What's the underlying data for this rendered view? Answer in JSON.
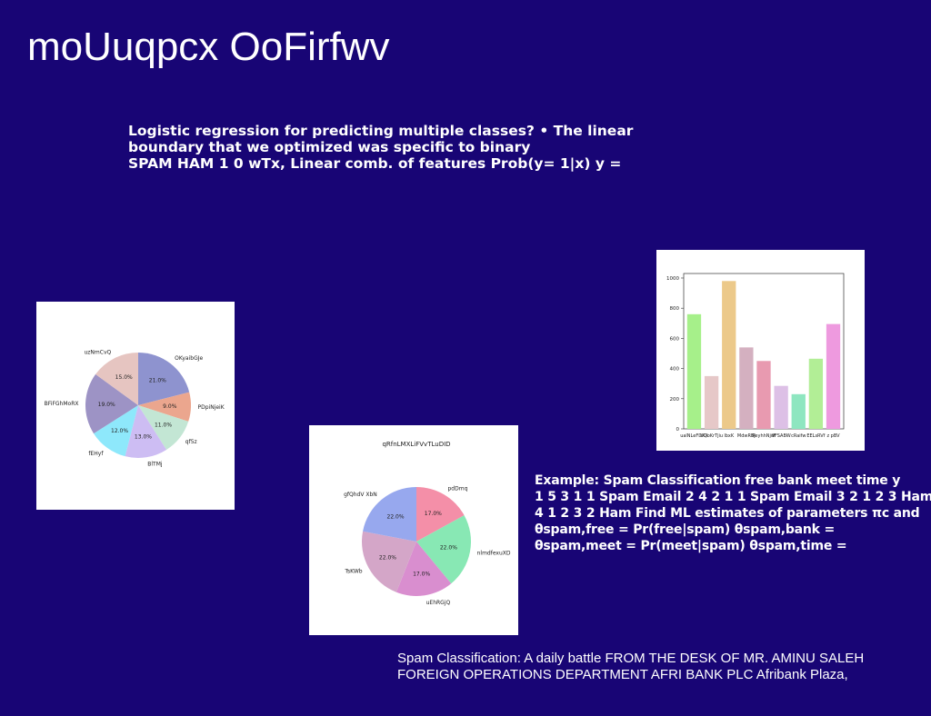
{
  "slide": {
    "title": "moUuqpcx OoFirfwv",
    "text_lines": [
      "Logistic regression for predicting multiple classes? • The linear",
      "boundary that we optimized was specific to binary",
      "SPAM HAM 1 0 wTx, Linear comb. of features Prob(y= 1|x) y ="
    ],
    "example_lines": [
      "Example: Spam Classification free bank meet time y",
      "1 5 3 1 1 Spam Email 2 4 2 1 1 Spam Email 3 2 1 2 3 Ham",
      "4 1 2 3 2 Ham Find ML estimates of parameters πc and",
      "θspam,free = Pr(free|spam) θspam,bank =",
      "θspam,meet = Pr(meet|spam) θspam,time ="
    ],
    "footer_lines": [
      "Spam Classification: A daily battle FROM THE DESK OF MR. AMINU SALEH",
      "FOREIGN OPERATIONS DEPARTMENT AFRI BANK PLC Afribank Plaza,"
    ],
    "background_color": "#180575"
  },
  "chart_data": [
    {
      "type": "pie",
      "title": "",
      "labels": [
        "OKyaibGJe",
        "PDpiNjeiK",
        "qf5z",
        "BlTMj",
        "fEHyf",
        "BFiFGhMoRX",
        "uzNmCvQ"
      ],
      "values": [
        21.0,
        9.0,
        11.0,
        13.0,
        12.0,
        19.0,
        15.0
      ],
      "pct_labels": [
        "21.0%",
        "9.0%",
        "11.0%",
        "13.0%",
        "12.0%",
        "19.0%",
        "15.0%"
      ],
      "colors": [
        "#8e93cf",
        "#eba68e",
        "#c3e6d4",
        "#cdbdf3",
        "#8ee8fb",
        "#9d93c5",
        "#e6c5c1"
      ]
    },
    {
      "type": "pie",
      "title": "qRfnLMXLiFVvTLuDID",
      "labels": [
        "pdDmq",
        "nlmdfexuXD",
        "uEhRGjQ",
        "TsKWb",
        "gfQhdV XbN"
      ],
      "values": [
        17.0,
        22.0,
        17.0,
        22.0,
        22.0
      ],
      "pct_labels": [
        "17.0%",
        "22.0%",
        "17.0%",
        "22.0%",
        "22.0%"
      ],
      "colors": [
        "#f48fa8",
        "#88e8b4",
        "#d98ecf",
        "#d4a6c8",
        "#97a8ee"
      ]
    },
    {
      "type": "bar",
      "title": "",
      "categories": [
        "ualNLeFDKX",
        "UQoKrTjiu",
        "lbxK",
        "MdwRBJ",
        "ReyhhNjdf",
        "VFSABW",
        "cRaifw",
        "EELsRVf",
        "z pBV"
      ],
      "values": [
        760,
        350,
        980,
        540,
        450,
        285,
        230,
        465,
        695
      ],
      "ylim": [
        0,
        1030
      ],
      "yticks": [
        0,
        200,
        400,
        600,
        800,
        1000
      ],
      "colors": [
        "#a6f08a",
        "#e6c8c8",
        "#ecc98a",
        "#d4b0c0",
        "#e89ab0",
        "#ddc0e6",
        "#8ee6c0",
        "#b2ee96",
        "#ee9adf"
      ]
    }
  ]
}
